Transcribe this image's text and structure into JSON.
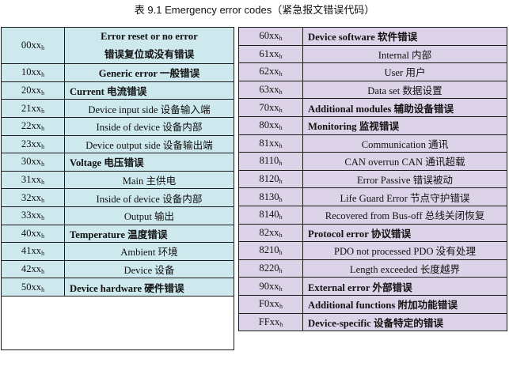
{
  "caption": "表 9.1 Emergency error codes（紧急报文错误代码）",
  "code_suffix": "h",
  "left": {
    "rows": [
      {
        "code": "00xx",
        "desc_en": "Error reset or no error",
        "desc_cn": "错误复位或没有错误"
      },
      {
        "code": "10xx",
        "desc": "Generic error 一般错误"
      },
      {
        "code": "20xx",
        "desc": "Current 电流错误"
      },
      {
        "code": "21xx",
        "desc": "Device input side 设备输入端"
      },
      {
        "code": "22xx",
        "desc": "Inside of device 设备内部"
      },
      {
        "code": "23xx",
        "desc": "Device output side 设备输出端"
      },
      {
        "code": "30xx",
        "desc": "Voltage 电压错误"
      },
      {
        "code": "31xx",
        "desc": "Main 主供电"
      },
      {
        "code": "32xx",
        "desc": "Inside of device 设备内部"
      },
      {
        "code": "33xx",
        "desc": "Output 输出"
      },
      {
        "code": "40xx",
        "desc": "Temperature 温度错误"
      },
      {
        "code": "41xx",
        "desc": "Ambient 环境"
      },
      {
        "code": "42xx",
        "desc": "Device 设备"
      },
      {
        "code": "50xx",
        "desc": "Device hardware 硬件错误"
      }
    ]
  },
  "right": {
    "rows": [
      {
        "code": "60xx",
        "desc": "Device software 软件错误"
      },
      {
        "code": "61xx",
        "desc": "Internal 内部"
      },
      {
        "code": "62xx",
        "desc": "User 用户"
      },
      {
        "code": "63xx",
        "desc": "Data set 数据设置"
      },
      {
        "code": "70xx",
        "desc": "Additional modules 辅助设备错误"
      },
      {
        "code": "80xx",
        "desc": "Monitoring 监视错误"
      },
      {
        "code": "81xx",
        "desc": "Communication 通讯"
      },
      {
        "code": "8110",
        "desc": "CAN overrun CAN 通讯超载"
      },
      {
        "code": "8120",
        "desc": "Error Passive 错误被动"
      },
      {
        "code": "8130",
        "desc": "Life Guard Error 节点守护错误"
      },
      {
        "code": "8140",
        "desc": "Recovered from Bus-off 总线关闭恢复"
      },
      {
        "code": "82xx",
        "desc": "Protocol error 协议错误"
      },
      {
        "code": "8210",
        "desc": "PDO not processed PDO 没有处理"
      },
      {
        "code": "8220",
        "desc": "Length exceeded 长度越界"
      },
      {
        "code": "90xx",
        "desc": "External error 外部错误"
      },
      {
        "code": "F0xx",
        "desc": "Additional functions 附加功能错误"
      },
      {
        "code": "FFxx",
        "desc": "Device-specific 设备特定的错误"
      }
    ]
  }
}
